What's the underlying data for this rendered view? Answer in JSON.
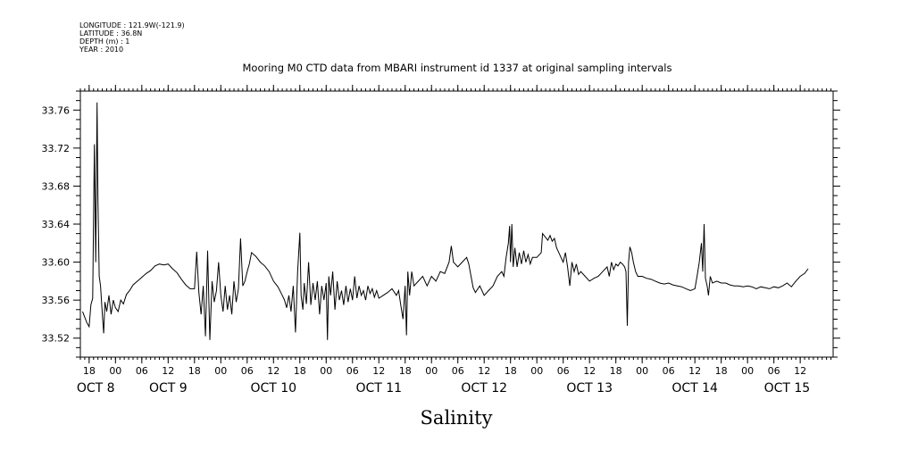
{
  "header": {
    "longitude": "LONGITUDE : 121.9W(-121.9)",
    "latitude": "LATITUDE : 36.8N",
    "depth": "DEPTH (m) : 1",
    "year": "YEAR : 2010"
  },
  "chart_data": {
    "type": "line",
    "title": "Mooring M0 CTD data from MBARI instrument id 1337 at original sampling intervals",
    "xlabel": "Salinity",
    "ylabel": "",
    "xlim_hours": [
      0,
      171.5
    ],
    "ylim": [
      33.5,
      33.78
    ],
    "yticks": [
      33.52,
      33.56,
      33.6,
      33.64,
      33.68,
      33.72,
      33.76
    ],
    "ytick_labels": [
      "33.52",
      "33.56",
      "33.60",
      "33.64",
      "33.68",
      "33.72",
      "33.76"
    ],
    "x_hour_ticks": [
      {
        "h": 2,
        "label": "18"
      },
      {
        "h": 8,
        "label": "00"
      },
      {
        "h": 14,
        "label": "06"
      },
      {
        "h": 20,
        "label": "12"
      },
      {
        "h": 26,
        "label": "18"
      },
      {
        "h": 32,
        "label": "00"
      },
      {
        "h": 38,
        "label": "06"
      },
      {
        "h": 44,
        "label": "12"
      },
      {
        "h": 50,
        "label": "18"
      },
      {
        "h": 56,
        "label": "00"
      },
      {
        "h": 62,
        "label": "06"
      },
      {
        "h": 68,
        "label": "12"
      },
      {
        "h": 74,
        "label": "18"
      },
      {
        "h": 80,
        "label": "00"
      },
      {
        "h": 86,
        "label": "06"
      },
      {
        "h": 92,
        "label": "12"
      },
      {
        "h": 98,
        "label": "18"
      },
      {
        "h": 104,
        "label": "00"
      },
      {
        "h": 110,
        "label": "06"
      },
      {
        "h": 116,
        "label": "12"
      },
      {
        "h": 122,
        "label": "18"
      },
      {
        "h": 128,
        "label": "00"
      },
      {
        "h": 134,
        "label": "06"
      },
      {
        "h": 140,
        "label": "12"
      },
      {
        "h": 146,
        "label": "18"
      },
      {
        "h": 152,
        "label": "00"
      },
      {
        "h": 158,
        "label": "06"
      },
      {
        "h": 164,
        "label": "12"
      }
    ],
    "x_day_labels": [
      {
        "h": 3.5,
        "label": "OCT  8"
      },
      {
        "h": 20,
        "label": "OCT  9"
      },
      {
        "h": 44,
        "label": "OCT 10"
      },
      {
        "h": 68,
        "label": "OCT 11"
      },
      {
        "h": 92,
        "label": "OCT 12"
      },
      {
        "h": 116,
        "label": "OCT 13"
      },
      {
        "h": 140,
        "label": "OCT 14"
      },
      {
        "h": 161,
        "label": "OCT 15"
      }
    ],
    "series": [
      {
        "color": "#000000",
        "points": [
          [
            0.5,
            33.548
          ],
          [
            1.0,
            33.542
          ],
          [
            1.5,
            33.536
          ],
          [
            2.0,
            33.532
          ],
          [
            2.4,
            33.555
          ],
          [
            2.8,
            33.562
          ],
          [
            3.2,
            33.724
          ],
          [
            3.5,
            33.6
          ],
          [
            3.8,
            33.768
          ],
          [
            4.0,
            33.665
          ],
          [
            4.3,
            33.585
          ],
          [
            4.6,
            33.575
          ],
          [
            5.0,
            33.545
          ],
          [
            5.3,
            33.525
          ],
          [
            5.6,
            33.558
          ],
          [
            6.0,
            33.548
          ],
          [
            6.5,
            33.565
          ],
          [
            7.0,
            33.545
          ],
          [
            7.5,
            33.56
          ],
          [
            8.0,
            33.552
          ],
          [
            8.6,
            33.548
          ],
          [
            9.2,
            33.56
          ],
          [
            9.8,
            33.556
          ],
          [
            10.5,
            33.566
          ],
          [
            11.2,
            33.57
          ],
          [
            12.0,
            33.576
          ],
          [
            13.0,
            33.58
          ],
          [
            14.0,
            33.584
          ],
          [
            15.0,
            33.588
          ],
          [
            16.0,
            33.591
          ],
          [
            17.0,
            33.596
          ],
          [
            18.0,
            33.598
          ],
          [
            19.0,
            33.597
          ],
          [
            20.0,
            33.598
          ],
          [
            21.0,
            33.593
          ],
          [
            22.0,
            33.589
          ],
          [
            23.0,
            33.582
          ],
          [
            24.0,
            33.576
          ],
          [
            25.0,
            33.572
          ],
          [
            26.0,
            33.572
          ],
          [
            26.5,
            33.611
          ],
          [
            27.0,
            33.568
          ],
          [
            27.5,
            33.545
          ],
          [
            28.0,
            33.575
          ],
          [
            28.5,
            33.522
          ],
          [
            29.0,
            33.612
          ],
          [
            29.5,
            33.518
          ],
          [
            30.0,
            33.58
          ],
          [
            30.5,
            33.558
          ],
          [
            31.0,
            33.57
          ],
          [
            31.5,
            33.6
          ],
          [
            32.0,
            33.565
          ],
          [
            32.5,
            33.548
          ],
          [
            33.0,
            33.575
          ],
          [
            33.5,
            33.55
          ],
          [
            34.0,
            33.565
          ],
          [
            34.5,
            33.545
          ],
          [
            35.0,
            33.58
          ],
          [
            35.5,
            33.558
          ],
          [
            36.0,
            33.572
          ],
          [
            36.5,
            33.625
          ],
          [
            37.0,
            33.575
          ],
          [
            37.5,
            33.58
          ],
          [
            38.0,
            33.59
          ],
          [
            38.5,
            33.598
          ],
          [
            39.0,
            33.61
          ],
          [
            40.0,
            33.606
          ],
          [
            41.0,
            33.6
          ],
          [
            42.0,
            33.596
          ],
          [
            43.0,
            33.59
          ],
          [
            44.0,
            33.58
          ],
          [
            45.0,
            33.574
          ],
          [
            46.0,
            33.565
          ],
          [
            46.5,
            33.56
          ],
          [
            47.0,
            33.552
          ],
          [
            47.5,
            33.565
          ],
          [
            48.0,
            33.548
          ],
          [
            48.5,
            33.575
          ],
          [
            49.0,
            33.526
          ],
          [
            49.5,
            33.59
          ],
          [
            50.0,
            33.631
          ],
          [
            50.3,
            33.565
          ],
          [
            50.7,
            33.55
          ],
          [
            51.0,
            33.578
          ],
          [
            51.5,
            33.556
          ],
          [
            52.0,
            33.6
          ],
          [
            52.5,
            33.555
          ],
          [
            53.0,
            33.578
          ],
          [
            53.5,
            33.56
          ],
          [
            54.0,
            33.58
          ],
          [
            54.5,
            33.545
          ],
          [
            55.0,
            33.575
          ],
          [
            55.5,
            33.56
          ],
          [
            56.0,
            33.578
          ],
          [
            56.3,
            33.518
          ],
          [
            56.6,
            33.585
          ],
          [
            57.0,
            33.565
          ],
          [
            57.5,
            33.59
          ],
          [
            58.0,
            33.55
          ],
          [
            58.5,
            33.58
          ],
          [
            59.0,
            33.56
          ],
          [
            59.5,
            33.57
          ],
          [
            60.0,
            33.555
          ],
          [
            60.5,
            33.575
          ],
          [
            61.0,
            33.558
          ],
          [
            61.5,
            33.572
          ],
          [
            62.0,
            33.56
          ],
          [
            62.5,
            33.585
          ],
          [
            63.0,
            33.562
          ],
          [
            63.5,
            33.575
          ],
          [
            64.0,
            33.565
          ],
          [
            64.5,
            33.57
          ],
          [
            65.0,
            33.56
          ],
          [
            65.5,
            33.575
          ],
          [
            66.0,
            33.567
          ],
          [
            66.5,
            33.572
          ],
          [
            67.0,
            33.563
          ],
          [
            67.5,
            33.57
          ],
          [
            68.0,
            33.562
          ],
          [
            69.0,
            33.565
          ],
          [
            70.0,
            33.568
          ],
          [
            71.0,
            33.572
          ],
          [
            72.0,
            33.565
          ],
          [
            72.5,
            33.57
          ],
          [
            73.0,
            33.555
          ],
          [
            73.5,
            33.54
          ],
          [
            74.0,
            33.575
          ],
          [
            74.3,
            33.523
          ],
          [
            74.6,
            33.59
          ],
          [
            75.0,
            33.565
          ],
          [
            75.5,
            33.59
          ],
          [
            76.0,
            33.575
          ],
          [
            77.0,
            33.58
          ],
          [
            78.0,
            33.585
          ],
          [
            79.0,
            33.575
          ],
          [
            80.0,
            33.585
          ],
          [
            81.0,
            33.58
          ],
          [
            82.0,
            33.59
          ],
          [
            83.0,
            33.588
          ],
          [
            84.0,
            33.6
          ],
          [
            84.5,
            33.617
          ],
          [
            85.0,
            33.6
          ],
          [
            86.0,
            33.595
          ],
          [
            87.0,
            33.6
          ],
          [
            88.0,
            33.605
          ],
          [
            88.5,
            33.598
          ],
          [
            89.0,
            33.585
          ],
          [
            89.5,
            33.573
          ],
          [
            90.0,
            33.568
          ],
          [
            91.0,
            33.575
          ],
          [
            92.0,
            33.565
          ],
          [
            93.0,
            33.57
          ],
          [
            94.0,
            33.575
          ],
          [
            95.0,
            33.585
          ],
          [
            96.0,
            33.59
          ],
          [
            96.5,
            33.585
          ],
          [
            97.0,
            33.605
          ],
          [
            97.5,
            33.62
          ],
          [
            97.8,
            33.638
          ],
          [
            98.0,
            33.6
          ],
          [
            98.3,
            33.64
          ],
          [
            98.6,
            33.595
          ],
          [
            99.0,
            33.615
          ],
          [
            99.5,
            33.595
          ],
          [
            100.0,
            33.61
          ],
          [
            100.5,
            33.598
          ],
          [
            101.0,
            33.612
          ],
          [
            101.5,
            33.6
          ],
          [
            102.0,
            33.608
          ],
          [
            102.5,
            33.598
          ],
          [
            103.0,
            33.605
          ],
          [
            104.0,
            33.605
          ],
          [
            105.0,
            33.61
          ],
          [
            105.3,
            33.63
          ],
          [
            106.0,
            33.626
          ],
          [
            106.5,
            33.623
          ],
          [
            107.0,
            33.628
          ],
          [
            107.5,
            33.622
          ],
          [
            108.0,
            33.625
          ],
          [
            108.5,
            33.615
          ],
          [
            109.0,
            33.61
          ],
          [
            109.5,
            33.605
          ],
          [
            110.0,
            33.6
          ],
          [
            110.5,
            33.61
          ],
          [
            111.0,
            33.595
          ],
          [
            111.5,
            33.575
          ],
          [
            112.0,
            33.6
          ],
          [
            112.5,
            33.59
          ],
          [
            113.0,
            33.598
          ],
          [
            113.5,
            33.587
          ],
          [
            114.0,
            33.59
          ],
          [
            115.0,
            33.585
          ],
          [
            116.0,
            33.58
          ],
          [
            117.0,
            33.583
          ],
          [
            118.0,
            33.585
          ],
          [
            119.0,
            33.59
          ],
          [
            120.0,
            33.595
          ],
          [
            120.5,
            33.585
          ],
          [
            121.0,
            33.6
          ],
          [
            121.5,
            33.592
          ],
          [
            122.0,
            33.598
          ],
          [
            122.5,
            33.596
          ],
          [
            123.0,
            33.6
          ],
          [
            123.5,
            33.598
          ],
          [
            124.0,
            33.595
          ],
          [
            124.3,
            33.59
          ],
          [
            124.6,
            33.533
          ],
          [
            124.9,
            33.6
          ],
          [
            125.2,
            33.616
          ],
          [
            125.6,
            33.61
          ],
          [
            126.0,
            33.6
          ],
          [
            126.5,
            33.59
          ],
          [
            127.0,
            33.585
          ],
          [
            128.0,
            33.585
          ],
          [
            129.0,
            33.583
          ],
          [
            130.0,
            33.582
          ],
          [
            131.0,
            33.58
          ],
          [
            132.0,
            33.578
          ],
          [
            133.0,
            33.577
          ],
          [
            134.0,
            33.578
          ],
          [
            135.0,
            33.576
          ],
          [
            136.0,
            33.575
          ],
          [
            137.0,
            33.574
          ],
          [
            138.0,
            33.572
          ],
          [
            139.0,
            33.57
          ],
          [
            140.0,
            33.572
          ],
          [
            140.5,
            33.585
          ],
          [
            141.0,
            33.6
          ],
          [
            141.5,
            33.62
          ],
          [
            141.8,
            33.59
          ],
          [
            142.1,
            33.64
          ],
          [
            142.4,
            33.583
          ],
          [
            142.8,
            33.575
          ],
          [
            143.1,
            33.565
          ],
          [
            143.5,
            33.585
          ],
          [
            144.0,
            33.578
          ],
          [
            145.0,
            33.58
          ],
          [
            146.0,
            33.578
          ],
          [
            147.0,
            33.578
          ],
          [
            148.0,
            33.576
          ],
          [
            149.0,
            33.575
          ],
          [
            150.0,
            33.575
          ],
          [
            151.0,
            33.574
          ],
          [
            152.0,
            33.575
          ],
          [
            153.0,
            33.574
          ],
          [
            154.0,
            33.572
          ],
          [
            155.0,
            33.574
          ],
          [
            156.0,
            33.573
          ],
          [
            157.0,
            33.572
          ],
          [
            158.0,
            33.574
          ],
          [
            159.0,
            33.573
          ],
          [
            160.0,
            33.575
          ],
          [
            161.0,
            33.578
          ],
          [
            162.0,
            33.574
          ],
          [
            163.0,
            33.58
          ],
          [
            164.0,
            33.585
          ],
          [
            165.0,
            33.588
          ],
          [
            165.8,
            33.593
          ]
        ]
      }
    ],
    "grid": false,
    "legend": "none"
  }
}
